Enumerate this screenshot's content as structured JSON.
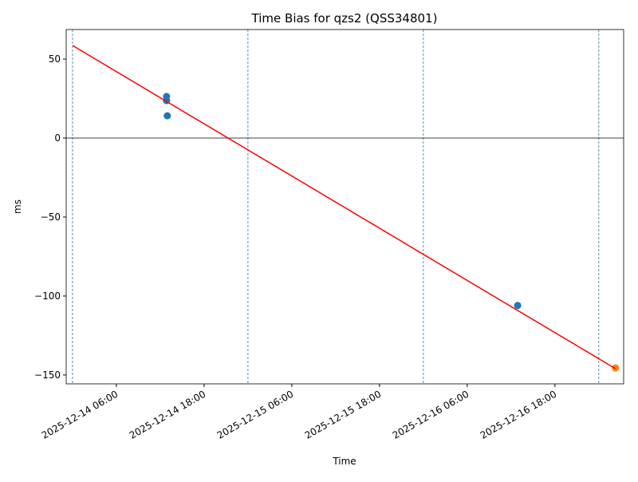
{
  "chart_data": {
    "type": "scatter",
    "title": "Time Bias for qzs2 (QSS34801)",
    "x_label": "Time",
    "y_label": "ms",
    "xlim": [
      "2025-12-13 23:08",
      "2025-12-17 03:24"
    ],
    "xticks": [
      "2025-12-14 06:00",
      "2025-12-14 18:00",
      "2025-12-15 06:00",
      "2025-12-15 18:00",
      "2025-12-16 06:00",
      "2025-12-16 18:00"
    ],
    "ylim": [
      -155.6,
      68.7
    ],
    "yticks": [
      {
        "value": -150,
        "label": "−150"
      },
      {
        "value": -100,
        "label": "−100"
      },
      {
        "value": -50,
        "label": "−50"
      },
      0,
      50
    ],
    "vlines": [
      "2025-12-14 00:00",
      "2025-12-15 00:00",
      "2025-12-16 00:00",
      "2025-12-17 00:00"
    ],
    "hlines": [
      0
    ],
    "series": [
      {
        "type": "scatter",
        "color": "#1f77b4",
        "x": [
          "2025-12-14 12:52",
          "2025-12-14 12:52",
          "2025-12-14 12:58",
          "2025-12-16 12:54"
        ],
        "values": [
          26.3,
          23.7,
          14.1,
          -106
        ]
      },
      {
        "type": "scatter",
        "color": "#ff7f0e",
        "x": [
          "2025-12-17 02:17"
        ],
        "values": [
          -145.5
        ]
      },
      {
        "type": "line",
        "color": "#ff0000",
        "x": [
          "2025-12-14 00:00",
          "2025-12-17 02:17"
        ],
        "values": [
          58.6,
          -146
        ]
      }
    ]
  }
}
